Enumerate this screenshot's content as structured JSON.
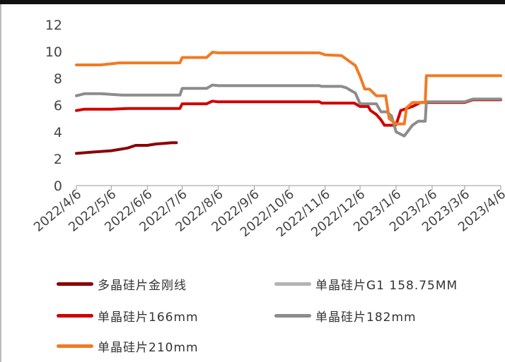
{
  "chart_data": {
    "type": "line",
    "ylim": [
      0,
      12
    ],
    "yticks": [
      0,
      2,
      4,
      6,
      8,
      10,
      12
    ],
    "xlim": [
      "2022-04-06",
      "2023-04-06"
    ],
    "xticks": [
      "2022/4/6",
      "2022/5/6",
      "2022/6/6",
      "2022/7/6",
      "2022/8/6",
      "2022/9/6",
      "2022/10/6",
      "2022/11/6",
      "2022/12/6",
      "2023/1/6",
      "2023/2/6",
      "2023/3/6",
      "2023/4/6"
    ],
    "legend_position": "bottom",
    "series": [
      {
        "name": "多晶硅片金刚线",
        "color": "#8b0000",
        "points": [
          [
            "2022-04-06",
            2.4
          ],
          [
            "2022-04-20",
            2.5
          ],
          [
            "2022-05-06",
            2.6
          ],
          [
            "2022-05-20",
            2.8
          ],
          [
            "2022-05-27",
            3.0
          ],
          [
            "2022-06-06",
            3.0
          ],
          [
            "2022-06-13",
            3.1
          ],
          [
            "2022-06-20",
            3.15
          ],
          [
            "2022-06-27",
            3.2
          ],
          [
            "2022-07-01",
            3.2
          ]
        ]
      },
      {
        "name": "单晶硅片G1 158.75MM",
        "color": "#b3b3b3",
        "points": []
      },
      {
        "name": "单晶硅片166mm",
        "color": "#d00000",
        "points": [
          [
            "2022-04-06",
            5.6
          ],
          [
            "2022-04-13",
            5.7
          ],
          [
            "2022-05-06",
            5.7
          ],
          [
            "2022-05-20",
            5.75
          ],
          [
            "2022-06-06",
            5.75
          ],
          [
            "2022-07-04",
            5.75
          ],
          [
            "2022-07-06",
            6.1
          ],
          [
            "2022-07-27",
            6.1
          ],
          [
            "2022-08-01",
            6.3
          ],
          [
            "2022-08-06",
            6.25
          ],
          [
            "2022-10-06",
            6.25
          ],
          [
            "2022-11-01",
            6.25
          ],
          [
            "2022-11-03",
            6.15
          ],
          [
            "2022-12-01",
            6.15
          ],
          [
            "2022-12-06",
            5.9
          ],
          [
            "2022-12-13",
            5.9
          ],
          [
            "2022-12-15",
            5.6
          ],
          [
            "2022-12-20",
            5.3
          ],
          [
            "2022-12-24",
            4.9
          ],
          [
            "2022-12-27",
            4.5
          ],
          [
            "2023-01-01",
            4.5
          ],
          [
            "2023-01-05",
            4.5
          ],
          [
            "2023-01-06",
            4.55
          ],
          [
            "2023-01-10",
            5.6
          ],
          [
            "2023-01-20",
            5.9
          ],
          [
            "2023-01-27",
            6.2
          ],
          [
            "2023-03-06",
            6.2
          ],
          [
            "2023-03-13",
            6.4
          ],
          [
            "2023-04-06",
            6.4
          ]
        ]
      },
      {
        "name": "单晶硅片182mm",
        "color": "#8c8c8c",
        "points": [
          [
            "2022-04-06",
            6.7
          ],
          [
            "2022-04-13",
            6.85
          ],
          [
            "2022-04-27",
            6.85
          ],
          [
            "2022-05-06",
            6.8
          ],
          [
            "2022-05-15",
            6.75
          ],
          [
            "2022-06-06",
            6.75
          ],
          [
            "2022-07-04",
            6.75
          ],
          [
            "2022-07-06",
            7.25
          ],
          [
            "2022-07-27",
            7.25
          ],
          [
            "2022-08-01",
            7.5
          ],
          [
            "2022-08-06",
            7.45
          ],
          [
            "2022-10-06",
            7.45
          ],
          [
            "2022-11-01",
            7.45
          ],
          [
            "2022-11-03",
            7.4
          ],
          [
            "2022-11-20",
            7.4
          ],
          [
            "2022-11-24",
            7.3
          ],
          [
            "2022-11-28",
            7.1
          ],
          [
            "2022-12-02",
            6.9
          ],
          [
            "2022-12-06",
            6.1
          ],
          [
            "2022-12-20",
            6.1
          ],
          [
            "2022-12-24",
            5.5
          ],
          [
            "2022-12-29",
            5.5
          ],
          [
            "2023-01-02",
            5.2
          ],
          [
            "2023-01-06",
            4.0
          ],
          [
            "2023-01-13",
            3.7
          ],
          [
            "2023-01-20",
            4.5
          ],
          [
            "2023-01-25",
            4.8
          ],
          [
            "2023-01-31",
            4.8
          ],
          [
            "2023-02-01",
            6.25
          ],
          [
            "2023-03-06",
            6.25
          ],
          [
            "2023-03-13",
            6.45
          ],
          [
            "2023-04-06",
            6.45
          ]
        ]
      },
      {
        "name": "单晶硅片210mm",
        "color": "#f07b24",
        "points": [
          [
            "2022-04-06",
            9.0
          ],
          [
            "2022-04-27",
            9.0
          ],
          [
            "2022-05-13",
            9.15
          ],
          [
            "2022-06-06",
            9.15
          ],
          [
            "2022-07-04",
            9.15
          ],
          [
            "2022-07-06",
            9.55
          ],
          [
            "2022-07-27",
            9.55
          ],
          [
            "2022-08-01",
            9.95
          ],
          [
            "2022-08-06",
            9.9
          ],
          [
            "2022-10-06",
            9.9
          ],
          [
            "2022-11-01",
            9.9
          ],
          [
            "2022-11-06",
            9.75
          ],
          [
            "2022-11-20",
            9.7
          ],
          [
            "2022-11-24",
            9.45
          ],
          [
            "2022-11-28",
            9.2
          ],
          [
            "2022-12-02",
            8.95
          ],
          [
            "2022-12-06",
            8.15
          ],
          [
            "2022-12-10",
            7.2
          ],
          [
            "2022-12-14",
            7.2
          ],
          [
            "2022-12-20",
            6.7
          ],
          [
            "2022-12-28",
            6.7
          ],
          [
            "2022-12-31",
            5.0
          ],
          [
            "2023-01-06",
            4.6
          ],
          [
            "2023-01-13",
            4.6
          ],
          [
            "2023-01-15",
            5.8
          ],
          [
            "2023-01-20",
            6.2
          ],
          [
            "2023-01-31",
            6.2
          ],
          [
            "2023-02-01",
            8.2
          ],
          [
            "2023-04-06",
            8.2
          ]
        ]
      }
    ]
  }
}
